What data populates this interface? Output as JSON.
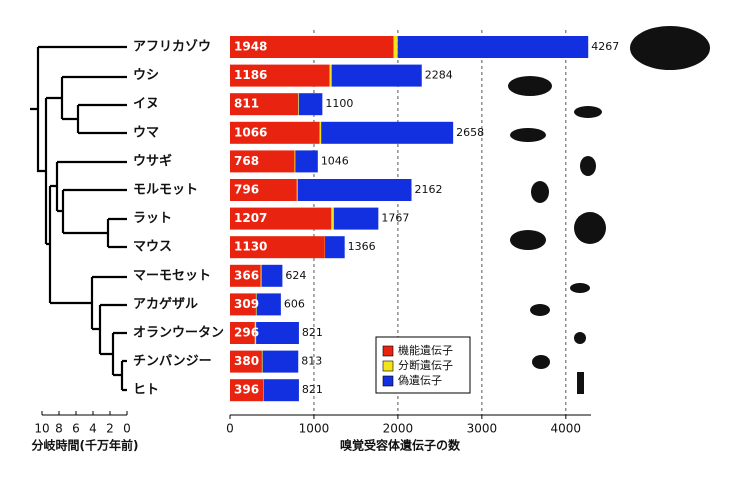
{
  "chart_data": {
    "type": "bar",
    "orientation": "horizontal",
    "stacked": true,
    "categories": [
      "アフリカゾウ",
      "ウシ",
      "イヌ",
      "ウマ",
      "ウサギ",
      "モルモット",
      "ラット",
      "マウス",
      "マーモセット",
      "アカゲザル",
      "オランウータン",
      "チンパンジー",
      "ヒト"
    ],
    "series": [
      {
        "name": "機能遺伝子",
        "color": "#e8230f",
        "values": [
          1948,
          1186,
          811,
          1066,
          768,
          796,
          1207,
          1130,
          366,
          309,
          296,
          380,
          396
        ]
      },
      {
        "name": "分断遺伝子",
        "color": "#f4e31b",
        "values": [
          50,
          25,
          8,
          20,
          10,
          10,
          30,
          2,
          10,
          8,
          15,
          8,
          4
        ]
      },
      {
        "name": "偽遺伝子",
        "color": "#1230e0",
        "values": [
          2269,
          1073,
          281,
          1572,
          268,
          1356,
          530,
          234,
          248,
          289,
          510,
          425,
          421
        ]
      }
    ],
    "totals": [
      4267,
      2284,
      1100,
      2658,
      1046,
      2162,
      1767,
      1366,
      624,
      606,
      821,
      813,
      821
    ],
    "xlabel": "嗅覚受容体遺伝子の数",
    "xlim": [
      0,
      4300
    ],
    "xticks": [
      0,
      1000,
      2000,
      3000,
      4000
    ],
    "grid": true,
    "legend": "lower center",
    "tree": {
      "xlabel": "分岐時間(千万年前)",
      "xlim": [
        10,
        0
      ],
      "xticks": [
        10,
        8,
        6,
        4,
        2,
        0
      ]
    }
  }
}
